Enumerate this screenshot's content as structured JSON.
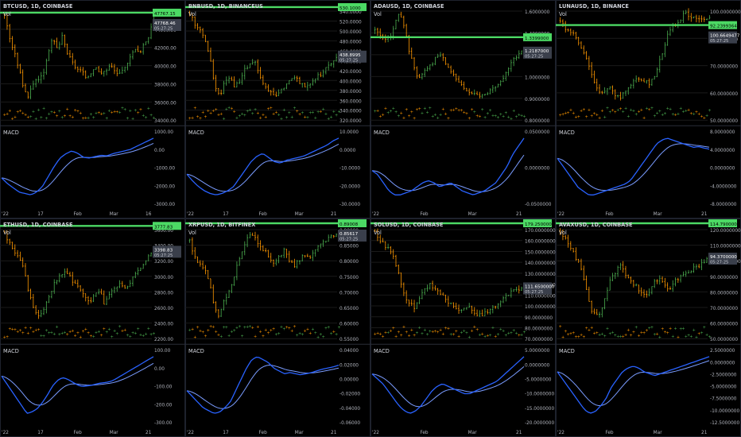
{
  "layout": {
    "cols": 4,
    "rows": 2
  },
  "colors": {
    "background": "#000000",
    "up": "#4caf50",
    "down": "#ff9800",
    "level": "#4cd964",
    "macd": "#2962ff",
    "signal": "#7a9cff",
    "grid": "#1a1a1a",
    "text": "#d1d4dc",
    "axis_text": "#b2b5be"
  },
  "chart_data": [
    {
      "type": "candlestick",
      "title": "BTCUSD, 1D, COINBASE",
      "volume_label": "Vol",
      "indicator_label": "MACD",
      "price_ticks": [
        "46000.00",
        "44000.00",
        "42000.00",
        "40000.00",
        "38000.00",
        "36000.00",
        "34000.00"
      ],
      "macd_ticks": [
        "1000.00",
        "0.00",
        "-1000.00",
        "-2000.00",
        "-3000.00"
      ],
      "x_ticks": [
        "'22",
        "17",
        "Feb",
        "Mar",
        "16"
      ],
      "level_price": "47767.15",
      "last_price": "47768.46",
      "last_time": "05:27:25",
      "close_path": [
        47500,
        44000,
        41500,
        39000,
        36000,
        34500,
        36800,
        37500,
        38000,
        41500,
        43500,
        42000,
        44000,
        41500,
        40000,
        39000,
        38500,
        37500,
        38500,
        39500,
        38000,
        38800,
        39500,
        38500,
        38000,
        39000,
        41000,
        42000,
        41500,
        43000,
        44000,
        47800
      ],
      "macd_path": [
        -1600,
        -2000,
        -2300,
        -2600,
        -2700,
        -2800,
        -2600,
        -2200,
        -1500,
        -800,
        -200,
        100,
        300,
        150,
        -150,
        -200,
        -100,
        0,
        -50,
        100,
        200,
        300,
        400,
        600,
        800,
        1000,
        1200
      ]
    },
    {
      "type": "candlestick",
      "title": "BNBUSD, 1D, BINANCEUS",
      "volume_label": "Vol",
      "indicator_label": "MACD",
      "price_ticks": [
        "540.0000",
        "520.0000",
        "500.0000",
        "480.0000",
        "460.0000",
        "440.0000",
        "420.0000",
        "400.0000",
        "380.0000",
        "360.0000",
        "340.0000",
        "320.0000"
      ],
      "macd_ticks": [
        "10.0000",
        "0.0000",
        "-10.0000",
        "-20.0000",
        "-30.0000"
      ],
      "x_ticks": [
        "'22",
        "17",
        "Feb",
        "Mar",
        "21"
      ],
      "level_price": "530.1000",
      "last_price": "438.8995",
      "last_time": "05:27:25",
      "close_path": [
        520,
        500,
        490,
        470,
        440,
        380,
        360,
        390,
        400,
        380,
        390,
        410,
        420,
        430,
        400,
        380,
        370,
        360,
        370,
        380,
        390,
        400,
        390,
        380,
        385,
        395,
        400,
        410,
        420,
        430,
        440
      ],
      "macd_path": [
        -15,
        -20,
        -24,
        -27,
        -29,
        -30,
        -29,
        -27,
        -24,
        -18,
        -12,
        -6,
        -2,
        0,
        -3,
        -6,
        -7,
        -5,
        -4,
        -3,
        -2,
        0,
        2,
        4,
        6,
        9,
        11
      ]
    },
    {
      "type": "candlestick",
      "title": "ADAUSD, 1D, COINBASE",
      "volume_label": "Vol",
      "indicator_label": "MACD",
      "price_ticks": [
        "1.6000000",
        "1.4000000",
        "1.2000000",
        "1.0000000",
        "0.9000000",
        "0.8000000"
      ],
      "macd_ticks": [
        "0.0500000",
        "0.0000000",
        "-0.0500000"
      ],
      "x_ticks": [
        "'22",
        "Feb",
        "Mar",
        "21"
      ],
      "level_price": "1.3399000",
      "last_price": "1.2187000",
      "last_time": "05:27:25",
      "close_path": [
        1.4,
        1.35,
        1.3,
        1.35,
        1.45,
        1.55,
        1.4,
        1.2,
        1.05,
        1.0,
        1.05,
        1.1,
        1.15,
        1.2,
        1.15,
        1.05,
        1.0,
        0.95,
        0.9,
        0.88,
        0.85,
        0.83,
        0.85,
        0.88,
        0.9,
        0.95,
        1.0,
        1.1,
        1.15,
        1.2,
        1.22
      ],
      "macd_path": [
        -0.02,
        -0.03,
        -0.05,
        -0.07,
        -0.08,
        -0.08,
        -0.075,
        -0.07,
        -0.06,
        -0.05,
        -0.045,
        -0.05,
        -0.06,
        -0.055,
        -0.05,
        -0.06,
        -0.07,
        -0.075,
        -0.08,
        -0.075,
        -0.07,
        -0.06,
        -0.05,
        -0.03,
        -0.01,
        0.02,
        0.04,
        0.06
      ]
    },
    {
      "type": "candlestick",
      "title": "LUNAUSD, 1D, BINANCE",
      "volume_label": "Vol",
      "indicator_label": "MACD",
      "price_ticks": [
        "100.0000000",
        "90.0000000",
        "70.0000000",
        "60.0000000",
        "50.0000000"
      ],
      "macd_ticks": [
        "8.0000000",
        "4.0000000",
        "0.0000000",
        "-4.0000000",
        "-8.0000000"
      ],
      "x_ticks": [
        "'22",
        "Feb",
        "Mar",
        "21"
      ],
      "level_price": "92.2399364",
      "last_price": "100.6649477",
      "last_time": "05:27:25",
      "close_path": [
        95,
        90,
        88,
        85,
        80,
        75,
        65,
        55,
        50,
        52,
        55,
        50,
        48,
        52,
        55,
        58,
        60,
        58,
        55,
        62,
        70,
        80,
        90,
        92,
        95,
        100,
        98,
        96,
        97,
        95,
        98
      ],
      "macd_path": [
        2,
        0,
        -2,
        -4,
        -6,
        -7,
        -8,
        -8,
        -7.5,
        -7,
        -6.5,
        -6,
        -5.5,
        -5,
        -4,
        -2,
        0,
        2,
        4,
        6,
        7,
        7.5,
        7,
        6.5,
        6,
        5.5,
        5,
        5.2,
        4.8,
        4.5
      ]
    },
    {
      "type": "candlestick",
      "title": "ETHUSD, 1D, COINBASE",
      "volume_label": "Vol",
      "indicator_label": "MACD",
      "price_ticks": [
        "3600.00",
        "3400.00",
        "3200.00",
        "3000.00",
        "2800.00",
        "2600.00",
        "2400.00",
        "2200.00"
      ],
      "macd_ticks": [
        "100.00",
        "0.00",
        "-100.00",
        "-200.00",
        "-300.00"
      ],
      "x_ticks": [
        "'22",
        "17",
        "Feb",
        "Mar",
        "21"
      ],
      "level_price": "3777.83",
      "last_price": "3398.83",
      "last_time": "05:27:25",
      "close_path": [
        3700,
        3500,
        3400,
        3300,
        3100,
        2700,
        2500,
        2400,
        2500,
        2700,
        2900,
        3000,
        3100,
        3000,
        2900,
        2800,
        2700,
        2600,
        2700,
        2800,
        2600,
        2700,
        2800,
        2900,
        2800,
        2900,
        3000,
        3100,
        3200,
        3300,
        3400
      ],
      "macd_path": [
        -50,
        -100,
        -150,
        -200,
        -250,
        -300,
        -290,
        -270,
        -230,
        -180,
        -120,
        -80,
        -60,
        -70,
        -90,
        -110,
        -120,
        -115,
        -110,
        -100,
        -95,
        -90,
        -80,
        -60,
        -40,
        -20,
        0,
        20,
        40,
        60,
        80
      ]
    },
    {
      "type": "candlestick",
      "title": "XRPUSD, 1D, BITFINEX",
      "volume_label": "Vol",
      "indicator_label": "MACD",
      "price_ticks": [
        "0.90000",
        "0.85000",
        "0.80000",
        "0.75000",
        "0.70000",
        "0.65000",
        "0.60000",
        "0.55000"
      ],
      "macd_ticks": [
        "0.04000",
        "0.02000",
        "0.00000",
        "-0.02000",
        "-0.04000",
        "-0.06000"
      ],
      "x_ticks": [
        "'22",
        "17",
        "Feb",
        "Mar",
        "21"
      ],
      "level_price": "0.89008",
      "last_price": "0.85617",
      "last_time": "05:27:25",
      "close_path": [
        0.83,
        0.78,
        0.76,
        0.74,
        0.7,
        0.62,
        0.6,
        0.65,
        0.68,
        0.72,
        0.78,
        0.82,
        0.85,
        0.84,
        0.82,
        0.8,
        0.78,
        0.76,
        0.78,
        0.8,
        0.77,
        0.75,
        0.77,
        0.79,
        0.78,
        0.8,
        0.82,
        0.83,
        0.84,
        0.85,
        0.86
      ],
      "macd_path": [
        -0.02,
        -0.03,
        -0.04,
        -0.05,
        -0.055,
        -0.06,
        -0.058,
        -0.05,
        -0.04,
        -0.02,
        0.0,
        0.02,
        0.035,
        0.04,
        0.035,
        0.03,
        0.02,
        0.015,
        0.01,
        0.012,
        0.01,
        0.008,
        0.01,
        0.012,
        0.015,
        0.018,
        0.02,
        0.022,
        0.025
      ]
    },
    {
      "type": "candlestick",
      "title": "SOLUSD, 1D, COINBASE",
      "volume_label": "Vol",
      "indicator_label": "MACD",
      "price_ticks": [
        "170.0000000",
        "160.0000000",
        "150.0000000",
        "140.0000000",
        "130.0000000",
        "120.0000000",
        "110.0000000",
        "100.0000000",
        "90.0000000",
        "80.0000000",
        "70.0000000"
      ],
      "macd_ticks": [
        "5.0000000",
        "0.0000000",
        "-5.0000000",
        "-10.0000000",
        "-15.0000000",
        "-20.0000000"
      ],
      "x_ticks": [
        "'22",
        "Feb",
        "Mar",
        "21"
      ],
      "level_price": "179.2500000",
      "last_price": "111.6500000",
      "last_time": "05:27:25",
      "close_path": [
        170,
        160,
        155,
        150,
        140,
        120,
        100,
        95,
        90,
        100,
        110,
        115,
        110,
        105,
        100,
        95,
        90,
        85,
        88,
        90,
        85,
        82,
        85,
        88,
        90,
        95,
        100,
        105,
        108,
        110,
        112
      ],
      "macd_path": [
        -2,
        -4,
        -6,
        -9,
        -12,
        -15,
        -17,
        -18,
        -17,
        -15,
        -12,
        -9,
        -7,
        -6,
        -7,
        -8,
        -9,
        -10,
        -10,
        -9,
        -8,
        -7,
        -6,
        -5,
        -3,
        -1,
        1,
        3,
        5
      ]
    },
    {
      "type": "candlestick",
      "title": "AVAXUSD, 1D, COINBASE",
      "volume_label": "Vol",
      "indicator_label": "MACD",
      "price_ticks": [
        "120.0000000",
        "110.0000000",
        "100.0000000",
        "90.0000000",
        "80.0000000",
        "70.0000000",
        "60.0000000",
        "50.0000000"
      ],
      "macd_ticks": [
        "2.5000000",
        "0.0000000",
        "-2.5000000",
        "-5.0000000",
        "-7.5000000",
        "-10.0000000",
        "-12.5000000"
      ],
      "x_ticks": [
        "'22",
        "Feb",
        "Mar",
        "21"
      ],
      "level_price": "114.7900000",
      "last_price": "94.3700000",
      "last_time": "05:27:25",
      "close_path": [
        110,
        105,
        100,
        95,
        90,
        80,
        65,
        60,
        62,
        70,
        80,
        85,
        90,
        85,
        80,
        78,
        75,
        72,
        75,
        80,
        82,
        78,
        76,
        80,
        82,
        84,
        86,
        88,
        90,
        92,
        94
      ],
      "macd_path": [
        -1,
        -3,
        -5,
        -7,
        -9,
        -11,
        -12,
        -11.5,
        -10,
        -8,
        -5,
        -3,
        -1,
        0,
        0.5,
        0,
        -1,
        -1.5,
        -2,
        -1.5,
        -1,
        -0.5,
        0,
        0.5,
        1,
        1.5,
        2,
        2.5,
        3
      ]
    }
  ]
}
